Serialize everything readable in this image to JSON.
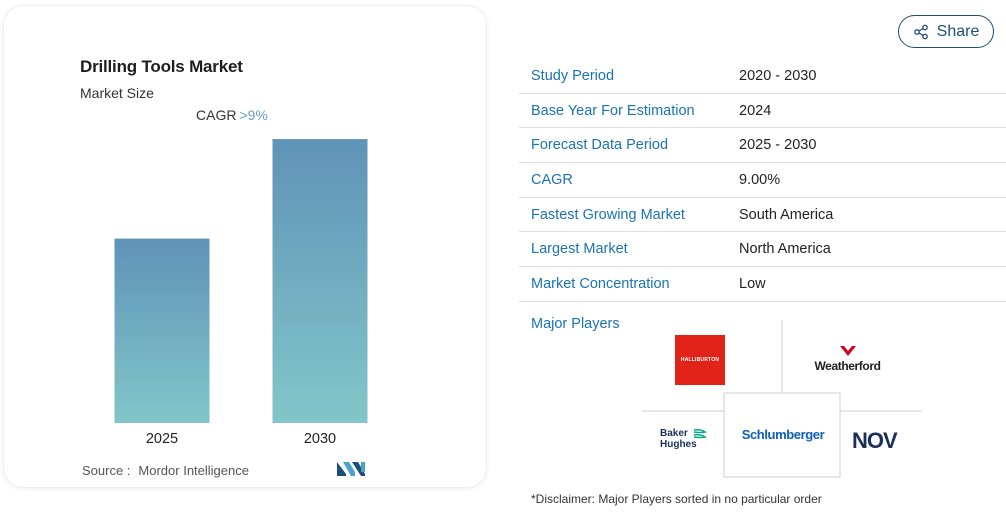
{
  "chart_data": {
    "type": "bar",
    "title": "Drilling Tools Market",
    "subtitle": "Market Size",
    "annotation": {
      "label": "CAGR",
      "value": ">9%"
    },
    "categories": [
      "2025",
      "2030"
    ],
    "values": [
      1.0,
      1.54
    ],
    "value_note": "relative bar heights (2025 = 1.0); no values printed on chart",
    "ylim": [
      0,
      1.6
    ],
    "grid": false,
    "colors": {
      "bar_top": "#5f93b8",
      "bar_bottom": "#82c6c9"
    }
  },
  "source": {
    "label": "Source :",
    "name": "Mordor Intelligence"
  },
  "share": {
    "label": "Share"
  },
  "info": [
    {
      "label": "Study Period",
      "value": "2020 - 2030"
    },
    {
      "label": "Base Year For Estimation",
      "value": "2024"
    },
    {
      "label": "Forecast Data Period",
      "value": "2025 - 2030"
    },
    {
      "label": "CAGR",
      "value": "9.00%"
    },
    {
      "label": "Fastest Growing Market",
      "value": "South America"
    },
    {
      "label": "Largest Market",
      "value": "North America"
    },
    {
      "label": "Market Concentration",
      "value": "Low"
    }
  ],
  "players": {
    "label": "Major Players",
    "logos": [
      "HALLIBURTON",
      "Weatherford",
      "Baker Hughes",
      "Schlumberger",
      "NOV"
    ]
  },
  "disclaimer": "*Disclaimer: Major Players sorted in no particular order",
  "accent_color": "#1a73b5"
}
